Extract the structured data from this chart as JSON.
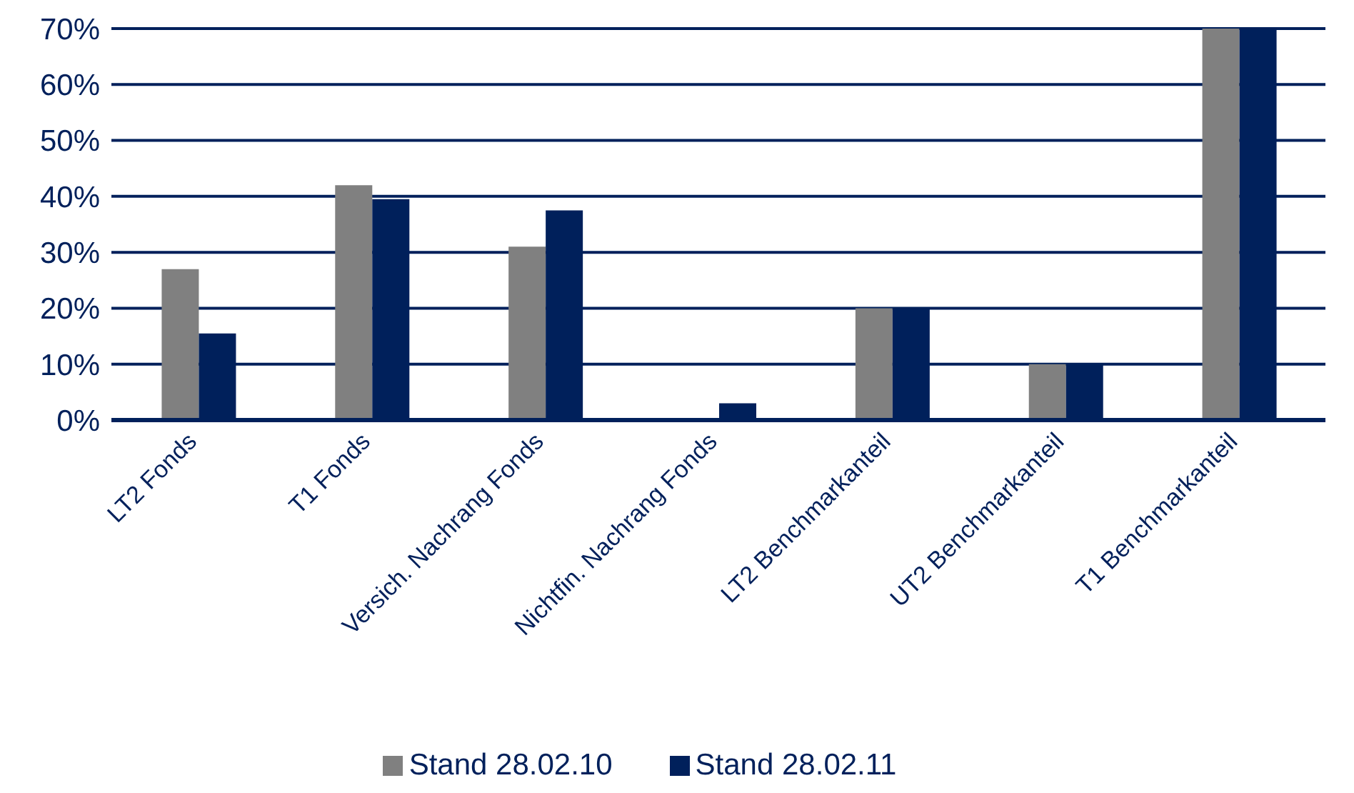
{
  "chart_data": {
    "type": "bar",
    "categories": [
      "LT2 Fonds",
      "T1 Fonds",
      "Versich. Nachrang Fonds",
      "Nichtfin. Nachrang Fonds",
      "LT2 Benchmarkanteil",
      "UT2 Benchmarkanteil",
      "T1 Benchmarkanteil"
    ],
    "series": [
      {
        "name": "Stand 28.02.10",
        "color": "#808080",
        "values": [
          27,
          42,
          31,
          0,
          20,
          10,
          70
        ]
      },
      {
        "name": "Stand 28.02.11",
        "color": "#00205b",
        "values": [
          15.5,
          39.5,
          37.5,
          3,
          20,
          10,
          70
        ]
      }
    ],
    "ylim": [
      0,
      70
    ],
    "yticks": [
      {
        "value": 0,
        "label": "0%"
      },
      {
        "value": 10,
        "label": "10%"
      },
      {
        "value": 20,
        "label": "20%"
      },
      {
        "value": 30,
        "label": "30%"
      },
      {
        "value": 40,
        "label": "40%"
      },
      {
        "value": 50,
        "label": "50%"
      },
      {
        "value": 60,
        "label": "60%"
      },
      {
        "value": 70,
        "label": "70%"
      }
    ],
    "grid": "y",
    "legend": "bottom"
  }
}
